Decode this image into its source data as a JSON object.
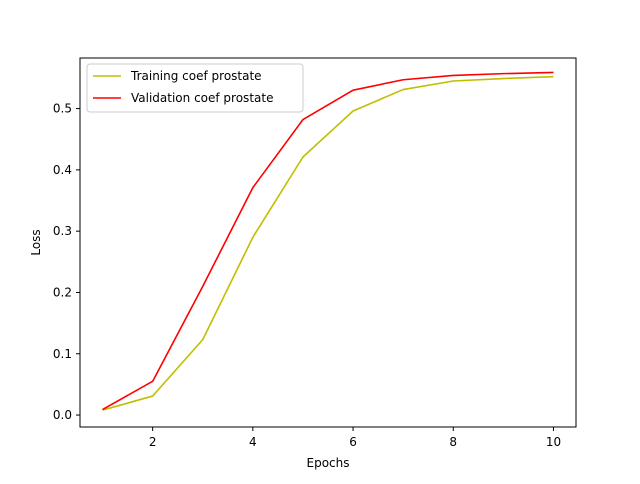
{
  "chart_data": {
    "type": "line",
    "title": "",
    "xlabel": "Epochs",
    "ylabel": "Loss",
    "xlim": [
      0.55,
      10.45
    ],
    "ylim": [
      -0.0195,
      0.5825
    ],
    "xticks": [
      2,
      4,
      6,
      8,
      10
    ],
    "yticks": [
      0.0,
      0.1,
      0.2,
      0.3,
      0.4,
      0.5
    ],
    "xtick_labels": [
      "2",
      "4",
      "6",
      "8",
      "10"
    ],
    "ytick_labels": [
      "0.0",
      "0.1",
      "0.2",
      "0.3",
      "0.4",
      "0.5"
    ],
    "grid": false,
    "legend_position": "upper-left",
    "x": [
      1,
      2,
      3,
      4,
      5,
      6,
      7,
      8,
      9,
      10
    ],
    "series": [
      {
        "name": "Training coef prostate",
        "color": "#bfbf00",
        "values": [
          0.008,
          0.031,
          0.123,
          0.29,
          0.421,
          0.496,
          0.531,
          0.545,
          0.549,
          0.552
        ]
      },
      {
        "name": "Validation coef prostate",
        "color": "#ff0000",
        "values": [
          0.009,
          0.055,
          0.21,
          0.371,
          0.482,
          0.53,
          0.547,
          0.554,
          0.557,
          0.559
        ]
      }
    ]
  }
}
